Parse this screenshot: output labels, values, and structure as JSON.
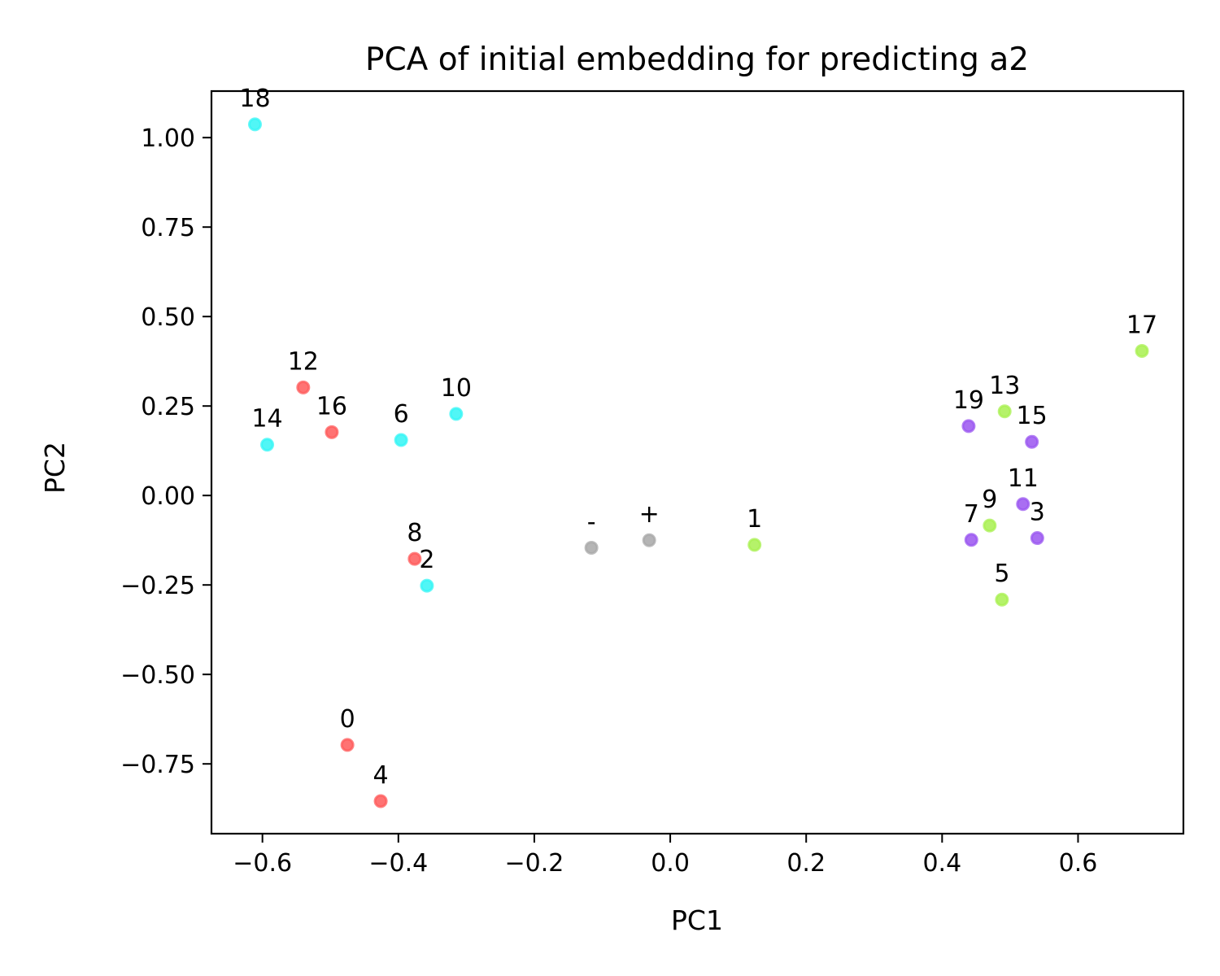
{
  "chart_data": {
    "type": "scatter",
    "title": "PCA of initial embedding for predicting a2",
    "xlabel": "PC1",
    "ylabel": "PC2",
    "xlim": [
      -0.675,
      0.755
    ],
    "ylim": [
      -0.945,
      1.13
    ],
    "xticks": [
      -0.6,
      -0.4,
      -0.2,
      0.0,
      0.2,
      0.4,
      0.6
    ],
    "xtick_labels": [
      "−0.6",
      "−0.4",
      "−0.2",
      "0.0",
      "0.2",
      "0.4",
      "0.6"
    ],
    "yticks": [
      1.0,
      0.75,
      0.5,
      0.25,
      0.0,
      -0.25,
      -0.5,
      -0.75
    ],
    "ytick_labels": [
      "1.00",
      "0.75",
      "0.50",
      "0.25",
      "0.00",
      "−0.25",
      "−0.50",
      "−0.75"
    ],
    "grid": false,
    "group_colors": {
      "red": "#ff5a5a",
      "cyan": "#33f5f5",
      "green": "#a8f050",
      "purple": "#9a55f0",
      "gray": "#a8a8a8"
    },
    "points": [
      {
        "label": "18",
        "x": -0.611,
        "y": 1.037,
        "group": "cyan"
      },
      {
        "label": "12",
        "x": -0.54,
        "y": 0.302,
        "group": "red"
      },
      {
        "label": "16",
        "x": -0.498,
        "y": 0.177,
        "group": "red"
      },
      {
        "label": "14",
        "x": -0.593,
        "y": 0.142,
        "group": "cyan"
      },
      {
        "label": "6",
        "x": -0.396,
        "y": 0.155,
        "group": "cyan"
      },
      {
        "label": "10",
        "x": -0.315,
        "y": 0.228,
        "group": "cyan"
      },
      {
        "label": "8",
        "x": -0.376,
        "y": -0.177,
        "group": "red"
      },
      {
        "label": "2",
        "x": -0.358,
        "y": -0.252,
        "group": "cyan"
      },
      {
        "label": "0",
        "x": -0.475,
        "y": -0.697,
        "group": "red"
      },
      {
        "label": "4",
        "x": -0.426,
        "y": -0.854,
        "group": "red"
      },
      {
        "label": "-",
        "x": -0.116,
        "y": -0.146,
        "group": "gray"
      },
      {
        "label": "+",
        "x": -0.031,
        "y": -0.125,
        "group": "gray"
      },
      {
        "label": "1",
        "x": 0.124,
        "y": -0.138,
        "group": "green"
      },
      {
        "label": "19",
        "x": 0.439,
        "y": 0.194,
        "group": "purple"
      },
      {
        "label": "13",
        "x": 0.492,
        "y": 0.235,
        "group": "green"
      },
      {
        "label": "15",
        "x": 0.532,
        "y": 0.15,
        "group": "purple"
      },
      {
        "label": "11",
        "x": 0.519,
        "y": -0.024,
        "group": "purple"
      },
      {
        "label": "9",
        "x": 0.47,
        "y": -0.084,
        "group": "green"
      },
      {
        "label": "7",
        "x": 0.443,
        "y": -0.124,
        "group": "purple"
      },
      {
        "label": "3",
        "x": 0.54,
        "y": -0.119,
        "group": "purple"
      },
      {
        "label": "5",
        "x": 0.488,
        "y": -0.291,
        "group": "green"
      },
      {
        "label": "17",
        "x": 0.694,
        "y": 0.404,
        "group": "green"
      }
    ]
  }
}
